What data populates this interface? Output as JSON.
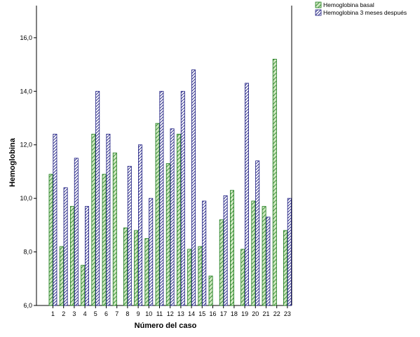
{
  "chart_data": {
    "type": "bar",
    "xlabel": "Número del caso",
    "ylabel": "Hemoglobina",
    "ylim": [
      6.0,
      17.2
    ],
    "yticks": [
      6.0,
      8.0,
      10.0,
      12.0,
      14.0,
      16.0
    ],
    "ytick_labels": [
      "6,0",
      "8,0",
      "10,0",
      "12,0",
      "14,0",
      "16,0"
    ],
    "grid": false,
    "legend_position": "top-right",
    "categories": [
      "1",
      "2",
      "3",
      "4",
      "5",
      "6",
      "7",
      "8",
      "9",
      "10",
      "11",
      "12",
      "13",
      "14",
      "15",
      "16",
      "17",
      "18",
      "19",
      "20",
      "21",
      "22",
      "23"
    ],
    "series": [
      {
        "name": "Hemoglobina basal",
        "color": "#1a7a1a",
        "fill": "#c6e3b2",
        "pattern": "diagonal-hatch",
        "values": [
          10.9,
          8.2,
          9.7,
          7.5,
          12.4,
          10.9,
          11.7,
          8.9,
          8.8,
          8.5,
          12.8,
          11.3,
          12.4,
          8.1,
          8.2,
          7.1,
          9.2,
          10.3,
          8.1,
          9.9,
          9.7,
          15.2,
          8.8
        ]
      },
      {
        "name": "Hemoglobina 3 meses después",
        "color": "#1c1c80",
        "fill": "#ffffff",
        "pattern": "dense-diagonal-hatch",
        "values": [
          12.4,
          10.4,
          11.5,
          9.7,
          14.0,
          12.4,
          null,
          11.2,
          12.0,
          10.0,
          14.0,
          12.6,
          14.0,
          14.8,
          9.9,
          null,
          10.1,
          null,
          14.3,
          11.4,
          9.3,
          null,
          10.0
        ]
      }
    ]
  }
}
